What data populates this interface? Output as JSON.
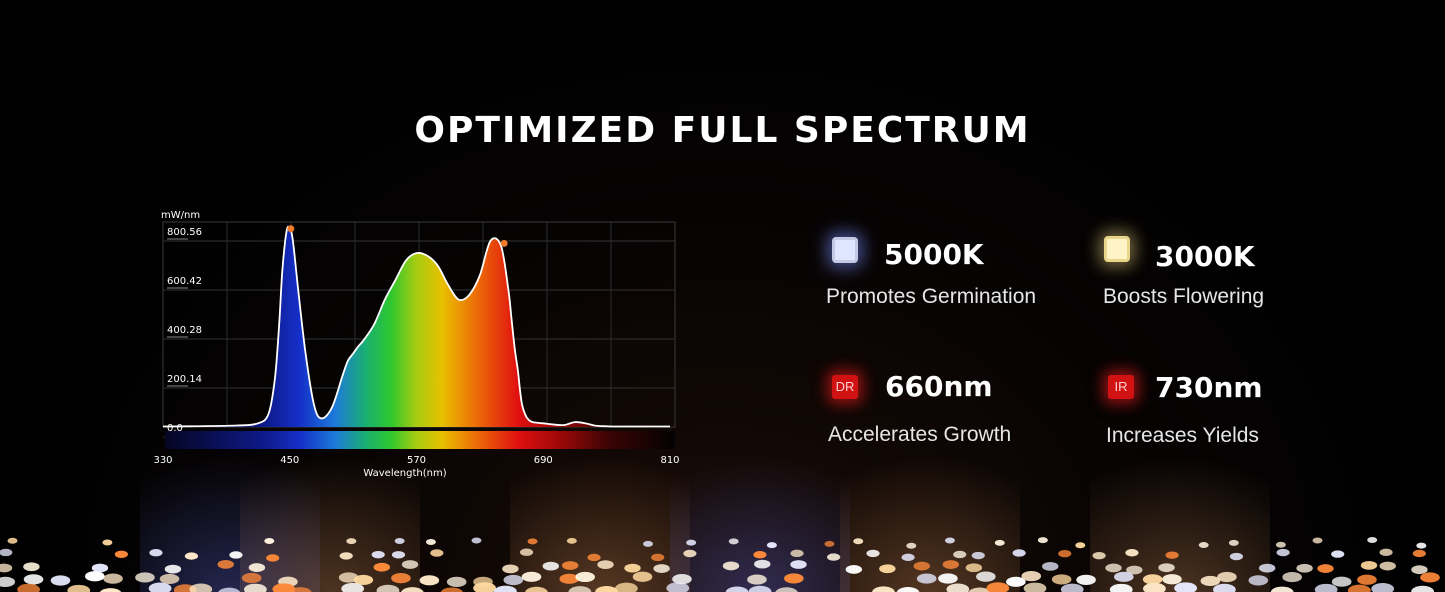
{
  "title": "OPTIMIZED FULL SPECTRUM",
  "chart_data": {
    "type": "line",
    "title": "",
    "ylabel": "mW/nm",
    "xlabel": "Wavelength(nm)",
    "xlim": [
      330,
      810
    ],
    "ylim": [
      0,
      880
    ],
    "x_ticks": [
      "330",
      "450",
      "570",
      "690",
      "810"
    ],
    "y_ticks": [
      "0.0",
      "200.14",
      "400.28",
      "600.42",
      "800.56"
    ],
    "grid": true,
    "x": [
      330,
      360,
      400,
      420,
      430,
      436,
      440,
      443,
      447,
      450,
      453,
      458,
      465,
      473,
      480,
      490,
      500,
      505,
      510,
      515,
      520,
      530,
      540,
      550,
      560,
      570,
      580,
      590,
      600,
      610,
      620,
      630,
      640,
      650,
      657,
      660,
      663,
      666,
      668,
      670,
      673,
      676,
      680,
      690,
      700,
      710,
      720,
      730,
      740,
      750,
      760,
      810
    ],
    "y": [
      2,
      3,
      6,
      15,
      55,
      200,
      420,
      640,
      800,
      810,
      760,
      560,
      300,
      90,
      35,
      80,
      210,
      270,
      300,
      330,
      355,
      420,
      520,
      600,
      680,
      710,
      700,
      660,
      580,
      520,
      540,
      620,
      760,
      740,
      560,
      440,
      320,
      230,
      150,
      90,
      50,
      30,
      20,
      15,
      10,
      8,
      20,
      15,
      5,
      3,
      2,
      2
    ],
    "peaks": [
      {
        "x": 451,
        "y": 810
      },
      {
        "x": 653,
        "y": 750
      }
    ]
  },
  "features": [
    {
      "icon": "white-led-chip-icon",
      "tag": "",
      "value": "5000K",
      "desc": "Promotes Germination"
    },
    {
      "icon": "warm-led-chip-icon",
      "tag": "",
      "value": "3000K",
      "desc": "Boosts Flowering"
    },
    {
      "icon": "deep-red-led-chip-icon",
      "tag": "DR",
      "value": "660nm",
      "desc": "Accelerates Growth"
    },
    {
      "icon": "infrared-led-chip-icon",
      "tag": "IR",
      "value": "730nm",
      "desc": "Increases Yields"
    }
  ],
  "colors": {
    "background": "#000000",
    "curve": "#ffffff",
    "peak_marker": "#f07a28",
    "deep_red": "#d01212"
  }
}
